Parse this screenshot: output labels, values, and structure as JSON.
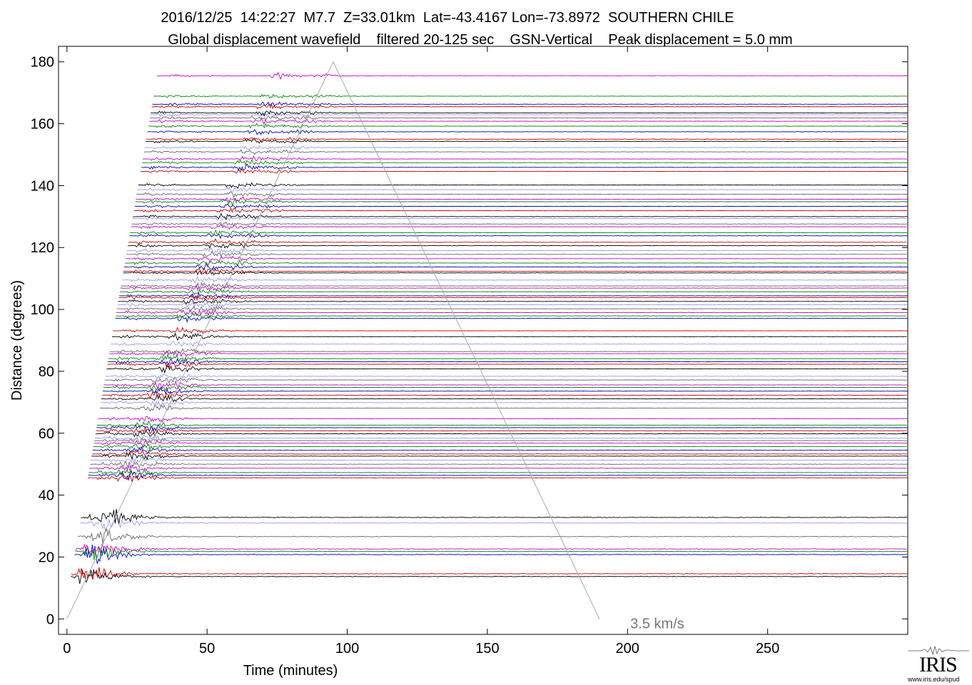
{
  "header": {
    "line1": "2016/12/25  14:22:27  M7.7  Z=33.01km  Lat=-43.4167 Lon=-73.8972  SOUTHERN CHILE",
    "line2": "Global displacement wavefield    filtered 20-125 sec    GSN-Vertical    Peak displacement = 5.0 mm"
  },
  "chart_data": {
    "type": "line",
    "xlabel": "Time (minutes)",
    "ylabel": "Distance (degrees)",
    "xlim": [
      -3,
      300
    ],
    "ylim": [
      -5,
      185
    ],
    "x_ticks": [
      0,
      50,
      100,
      150,
      200,
      250
    ],
    "y_ticks": [
      0,
      20,
      40,
      60,
      80,
      100,
      120,
      140,
      160,
      180
    ],
    "trace_colors": [
      "#000000",
      "#cc0000",
      "#0000cc",
      "#008800",
      "#cc00cc",
      "#666666",
      "#9999ff"
    ],
    "trace_distances": [
      13.7,
      14.6,
      20.8,
      21.8,
      22.6,
      26.6,
      31.0,
      32.8,
      45.6,
      46.4,
      47.3,
      48.7,
      50.0,
      51.3,
      52.6,
      53.3,
      54.5,
      55.7,
      56.8,
      57.6,
      58.4,
      59.8,
      60.8,
      61.8,
      62.6,
      64.7,
      68.1,
      69.9,
      71.1,
      72.3,
      73.6,
      74.8,
      75.6,
      77.2,
      78.4,
      80.8,
      82.3,
      83.1,
      84.1,
      85.7,
      86.4,
      88.8,
      91.2,
      93.1,
      97.1,
      97.9,
      99.0,
      100.2,
      101.5,
      102.6,
      103.8,
      104.4,
      105.7,
      106.9,
      107.6,
      109.5,
      111.8,
      112.3,
      113.7,
      115.0,
      116.4,
      117.8,
      119.0,
      120.6,
      121.7,
      123.8,
      124.8,
      126.7,
      127.6,
      129.4,
      130.0,
      131.9,
      133.3,
      134.8,
      135.6,
      137.2,
      138.7,
      140.2,
      144.6,
      145.9,
      147.4,
      148.6,
      150.9,
      152.3,
      154.3,
      155.0,
      157.4,
      159.2,
      160.8,
      161.9,
      162.9,
      163.5,
      165.5,
      166.3,
      168.9,
      175.5
    ],
    "reference_line": {
      "label": "3.5 km/s",
      "x": [
        0,
        95,
        190
      ],
      "y": [
        0,
        180,
        0
      ]
    }
  },
  "branding": {
    "logo_text": "IRIS",
    "url": "www.iris.edu/spud"
  }
}
